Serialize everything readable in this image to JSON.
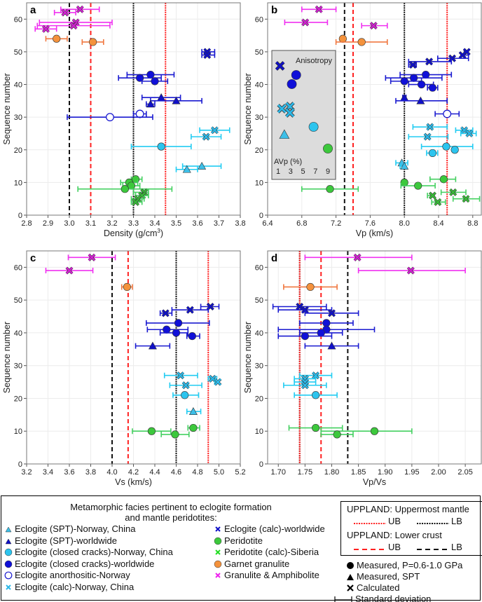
{
  "groups": {
    "A": {
      "label": "Eclogite (SPT)-Norway, China",
      "marker": "triangle",
      "color": "#3cbfe8",
      "bar": "#22ccf2"
    },
    "B": {
      "label": "Eclogite (SPT)-worldwide",
      "marker": "triangle",
      "color": "#1010c8",
      "bar": "#1a1ad0"
    },
    "C": {
      "label": "Eclogite (closed cracks)-Norway, China",
      "marker": "circle",
      "color": "#2cc4ee",
      "bar": "#22ccf2"
    },
    "D": {
      "label": "Eclogite (closed cracks)-worldwide",
      "marker": "circle",
      "color": "#1010d8",
      "bar": "#1a1ad0"
    },
    "E": {
      "label": "Eclogite anorthositic-Norway",
      "marker": "open-circle",
      "color": "#1a1ad0",
      "bar": "#1a1ad0"
    },
    "F": {
      "label": "Eclogite (calc)-Norway, China",
      "marker": "cross",
      "color": "#2cb8e8",
      "bar": "#22ccf2"
    },
    "G": {
      "label": "Eclogite (calc)-worldwide",
      "marker": "cross",
      "color": "#1010c8",
      "bar": "#1a1ad0"
    },
    "H": {
      "label": "Peridotite",
      "marker": "circle",
      "color": "#3cc83c",
      "bar": "#44d060"
    },
    "I": {
      "label": "Peridotite (calc)-Siberia",
      "marker": "cross",
      "color": "#38b838",
      "bar": "#44d060"
    },
    "J": {
      "label": "Garnet granulite",
      "marker": "circle",
      "color": "#f4923c",
      "bar": "#f07840"
    },
    "K": {
      "label": "Granulite & Amphibolite",
      "marker": "cross",
      "color": "#d020d0",
      "bar": "#f030f0"
    }
  },
  "legend": {
    "title_line1": "Metamorphic facies pertinent to eclogite formation",
    "title_line2": "and mantle peridotites:",
    "left_column": [
      "A",
      "B",
      "C",
      "D",
      "E",
      "F"
    ],
    "middle_column": [
      "G",
      "H",
      "I",
      "J",
      "K"
    ],
    "upland_mantle_title": "UPPLAND: Uppermost mantle",
    "upland_crust_title": "UPPLAND: Lower crust",
    "ub": "UB",
    "lb": "LB",
    "measured": "Measured, P=0.6-1.0 GPa",
    "measured_spt": "Measured, SPT",
    "calculated": "Calculated",
    "std_dev": "Standard deviation",
    "colors": {
      "mantle_ub": "#ff2020",
      "mantle_lb": "#111111",
      "crust_ub": "#ff2020",
      "crust_lb": "#111111"
    }
  },
  "chart_data": {
    "type": "scatter",
    "panels": [
      {
        "letter": "a",
        "xlabel": "Density (g/cm",
        "xlabel_sup": "3",
        "xlabel_end": ")",
        "ylabel": "Sequence number",
        "xlim": [
          2.8,
          3.8
        ],
        "ylim": [
          0,
          65
        ],
        "xticks": [
          "2.8",
          "2.9",
          "3.0",
          "3.1",
          "3.2",
          "3.3",
          "3.4",
          "3.5",
          "3.6",
          "3.7",
          "3.8"
        ],
        "yticks": [
          "0",
          "10",
          "20",
          "30",
          "40",
          "50",
          "60"
        ],
        "lines": {
          "crust_lb": 3.0,
          "crust_ub": 3.1,
          "mantle_lb": 3.3,
          "mantle_ub": 3.45
        },
        "points": [
          [
            3.05,
            63,
            2.96,
            3.14,
            "K"
          ],
          [
            2.98,
            62,
            2.93,
            3.03,
            "K"
          ],
          [
            3.03,
            59,
            2.86,
            3.2,
            "K"
          ],
          [
            3.02,
            58,
            2.85,
            3.19,
            "K"
          ],
          [
            2.89,
            57,
            2.84,
            2.94,
            "K"
          ],
          [
            2.94,
            54,
            2.89,
            2.99,
            "J"
          ],
          [
            3.11,
            53,
            3.06,
            3.16,
            "J"
          ],
          [
            3.645,
            50,
            3.62,
            3.68,
            "G"
          ],
          [
            3.645,
            49,
            3.62,
            3.68,
            "G"
          ],
          [
            3.38,
            43,
            3.27,
            3.49,
            "D"
          ],
          [
            3.33,
            42,
            3.23,
            3.43,
            "D"
          ],
          [
            3.4,
            41,
            3.34,
            3.46,
            "D"
          ],
          [
            3.43,
            36,
            3.34,
            3.52,
            "B"
          ],
          [
            3.5,
            35,
            3.38,
            3.62,
            "B"
          ],
          [
            3.38,
            34,
            3.36,
            3.4,
            "B"
          ],
          [
            3.33,
            31,
            3.3,
            3.36,
            "E"
          ],
          [
            3.19,
            30,
            2.99,
            3.39,
            "E"
          ],
          [
            3.68,
            26,
            3.61,
            3.75,
            "F"
          ],
          [
            3.64,
            24,
            3.57,
            3.71,
            "F"
          ],
          [
            3.43,
            21,
            3.29,
            3.57,
            "C"
          ],
          [
            3.62,
            15,
            3.53,
            3.71,
            "A"
          ],
          [
            3.55,
            14,
            3.5,
            3.6,
            "A"
          ],
          [
            3.31,
            11,
            3.29,
            3.34,
            "H"
          ],
          [
            3.28,
            10,
            3.24,
            3.32,
            "H"
          ],
          [
            3.29,
            9,
            3.25,
            3.33,
            "H"
          ],
          [
            3.26,
            8,
            3.04,
            3.48,
            "H"
          ],
          [
            3.35,
            7,
            3.3,
            3.37,
            "I"
          ],
          [
            3.34,
            6,
            3.31,
            3.37,
            "I"
          ],
          [
            3.32,
            5,
            3.29,
            3.35,
            "I"
          ],
          [
            3.31,
            4,
            3.29,
            3.34,
            "I"
          ]
        ]
      },
      {
        "letter": "b",
        "xlabel": "Vp (km/s)",
        "ylabel": "Sequence number",
        "xlim": [
          6.4,
          8.9
        ],
        "ylim": [
          0,
          65
        ],
        "xticks": [
          "6.4",
          "6.8",
          "7.2",
          "7.6",
          "8.0",
          "8.4",
          "8.8"
        ],
        "yticks": [
          "0",
          "10",
          "20",
          "30",
          "40",
          "50",
          "60"
        ],
        "lines": {
          "crust_lb": 7.3,
          "crust_ub": 7.4,
          "mantle_lb": 8.0,
          "mantle_ub": 8.5
        },
        "points": [
          [
            7.0,
            63,
            6.8,
            7.2,
            "K"
          ],
          [
            6.84,
            59,
            6.6,
            7.1,
            "K"
          ],
          [
            7.64,
            58,
            7.5,
            7.8,
            "K"
          ],
          [
            7.28,
            54,
            7.26,
            7.3,
            "J"
          ],
          [
            7.5,
            53,
            7.2,
            7.8,
            "J"
          ],
          [
            8.73,
            50,
            8.7,
            8.75,
            "G"
          ],
          [
            8.68,
            49,
            8.66,
            8.75,
            "G"
          ],
          [
            8.56,
            48,
            8.39,
            8.75,
            "G"
          ],
          [
            8.29,
            47,
            8.05,
            8.55,
            "G"
          ],
          [
            8.1,
            46,
            8.05,
            8.14,
            "G"
          ],
          [
            8.25,
            43,
            7.95,
            8.55,
            "D"
          ],
          [
            8.11,
            42,
            7.78,
            8.44,
            "D"
          ],
          [
            8.0,
            41,
            7.84,
            8.2,
            "D"
          ],
          [
            8.2,
            40,
            8.05,
            8.34,
            "D"
          ],
          [
            8.33,
            39,
            8.27,
            8.39,
            "D"
          ],
          [
            8.0,
            36,
            7.98,
            8.02,
            "B"
          ],
          [
            8.19,
            35,
            7.9,
            8.5,
            "B"
          ],
          [
            8.5,
            31,
            8.36,
            8.64,
            "E"
          ],
          [
            8.3,
            27,
            8.1,
            8.5,
            "F"
          ],
          [
            8.7,
            26,
            8.6,
            8.8,
            "F"
          ],
          [
            8.76,
            25,
            8.66,
            8.84,
            "F"
          ],
          [
            8.27,
            24,
            8.05,
            8.51,
            "F"
          ],
          [
            8.49,
            21,
            8.2,
            8.8,
            "C"
          ],
          [
            8.59,
            20,
            8.59,
            8.59,
            "C"
          ],
          [
            8.33,
            19,
            8.26,
            8.39,
            "C"
          ],
          [
            7.97,
            16,
            7.9,
            8.04,
            "A"
          ],
          [
            8.0,
            15,
            7.95,
            8.01,
            "A"
          ],
          [
            8.46,
            11,
            8.3,
            8.6,
            "H"
          ],
          [
            8.0,
            10,
            7.99,
            8.01,
            "H"
          ],
          [
            8.16,
            9,
            7.96,
            8.36,
            "H"
          ],
          [
            7.13,
            8,
            6.8,
            7.46,
            "H"
          ],
          [
            8.57,
            7,
            8.43,
            8.72,
            "I"
          ],
          [
            8.33,
            6,
            8.27,
            8.35,
            "I"
          ],
          [
            8.72,
            5,
            8.57,
            8.88,
            "I"
          ],
          [
            8.39,
            4,
            8.32,
            8.48,
            "I"
          ]
        ],
        "inset": {
          "title": "Anisotropy",
          "axis_label": "AVp (%)",
          "ticks": [
            "1",
            "3",
            "5",
            "7",
            "9"
          ],
          "xlim": [
            1,
            9
          ],
          "points": [
            [
              1.3,
              "G"
            ],
            [
              3.9,
              "D"
            ],
            [
              3.2,
              "D"
            ],
            [
              1.6,
              "F"
            ],
            [
              2.9,
              "F"
            ],
            [
              2.9,
              "F"
            ],
            [
              6.7,
              "C"
            ],
            [
              2.0,
              "A"
            ],
            [
              9.0,
              "H"
            ]
          ]
        }
      },
      {
        "letter": "c",
        "xlabel": "Vs (km/s)",
        "ylabel": "Sequence number",
        "xlim": [
          3.2,
          5.2
        ],
        "ylim": [
          0,
          65
        ],
        "xticks": [
          "3.2",
          "3.4",
          "3.6",
          "3.8",
          "4.0",
          "4.2",
          "4.4",
          "4.6",
          "4.8",
          "5.0",
          "5.2"
        ],
        "yticks": [
          "0",
          "10",
          "20",
          "30",
          "40",
          "50",
          "60"
        ],
        "lines": {
          "crust_lb": 4.0,
          "crust_ub": 4.15,
          "mantle_lb": 4.6,
          "mantle_ub": 4.9
        },
        "points": [
          [
            3.81,
            63,
            3.59,
            4.03,
            "K"
          ],
          [
            3.6,
            59,
            3.38,
            3.82,
            "K"
          ],
          [
            4.14,
            54,
            4.09,
            4.19,
            "J"
          ],
          [
            4.92,
            48,
            4.83,
            5.0,
            "G"
          ],
          [
            4.73,
            47,
            4.56,
            4.9,
            "G"
          ],
          [
            4.5,
            46,
            4.45,
            4.56,
            "G"
          ],
          [
            4.62,
            43,
            4.32,
            4.91,
            "D"
          ],
          [
            4.51,
            41,
            4.33,
            4.71,
            "D"
          ],
          [
            4.6,
            40,
            4.45,
            4.71,
            "D"
          ],
          [
            4.75,
            39,
            4.7,
            4.82,
            "D"
          ],
          [
            4.38,
            36,
            4.22,
            4.54,
            "B"
          ],
          [
            4.64,
            27,
            4.49,
            4.8,
            "F"
          ],
          [
            4.94,
            26,
            4.9,
            4.98,
            "F"
          ],
          [
            4.99,
            25,
            4.96,
            5.0,
            "F"
          ],
          [
            4.69,
            24,
            4.54,
            4.84,
            "F"
          ],
          [
            4.68,
            21,
            4.57,
            4.81,
            "C"
          ],
          [
            4.76,
            16,
            4.7,
            4.83,
            "A"
          ],
          [
            4.76,
            11,
            4.71,
            4.82,
            "H"
          ],
          [
            4.37,
            10,
            4.19,
            4.55,
            "H"
          ],
          [
            4.59,
            9,
            4.46,
            4.72,
            "H"
          ]
        ]
      },
      {
        "letter": "d",
        "xlabel": "Vp/Vs",
        "ylabel": "Sequence number",
        "xlim": [
          1.68,
          2.08
        ],
        "ylim": [
          0,
          65
        ],
        "xticks": [
          "1.70",
          "1.75",
          "1.80",
          "1.85",
          "1.90",
          "1.95",
          "2.00",
          "2.05"
        ],
        "xtick_start": 1.7,
        "xtick_step": 0.05,
        "yticks": [
          "0",
          "10",
          "20",
          "30",
          "40",
          "50",
          "60"
        ],
        "lines": {
          "crust_lb": 1.83,
          "crust_ub": 1.78,
          "mantle_lb": 1.74,
          "mantle_ub": 1.74
        },
        "points": [
          [
            1.848,
            63,
            1.75,
            1.95,
            "K"
          ],
          [
            1.948,
            59,
            1.85,
            2.05,
            "K"
          ],
          [
            1.76,
            54,
            1.71,
            1.81,
            "J"
          ],
          [
            1.74,
            48,
            1.69,
            1.79,
            "G"
          ],
          [
            1.75,
            47,
            1.7,
            1.8,
            "G"
          ],
          [
            1.8,
            46,
            1.75,
            1.85,
            "G"
          ],
          [
            1.79,
            43,
            1.74,
            1.84,
            "D"
          ],
          [
            1.79,
            41,
            1.7,
            1.88,
            "D"
          ],
          [
            1.78,
            40,
            1.74,
            1.82,
            "D"
          ],
          [
            1.75,
            39,
            1.7,
            1.8,
            "D"
          ],
          [
            1.8,
            36,
            1.75,
            1.85,
            "B"
          ],
          [
            1.77,
            27,
            1.74,
            1.8,
            "F"
          ],
          [
            1.75,
            26,
            1.73,
            1.77,
            "F"
          ],
          [
            1.75,
            25,
            1.73,
            1.77,
            "F"
          ],
          [
            1.75,
            24,
            1.71,
            1.79,
            "F"
          ],
          [
            1.77,
            21,
            1.73,
            1.81,
            "C"
          ],
          [
            1.77,
            11,
            1.72,
            1.82,
            "H"
          ],
          [
            1.88,
            10,
            1.78,
            1.95,
            "H"
          ],
          [
            1.81,
            9,
            1.78,
            1.84,
            "H"
          ]
        ]
      }
    ]
  }
}
